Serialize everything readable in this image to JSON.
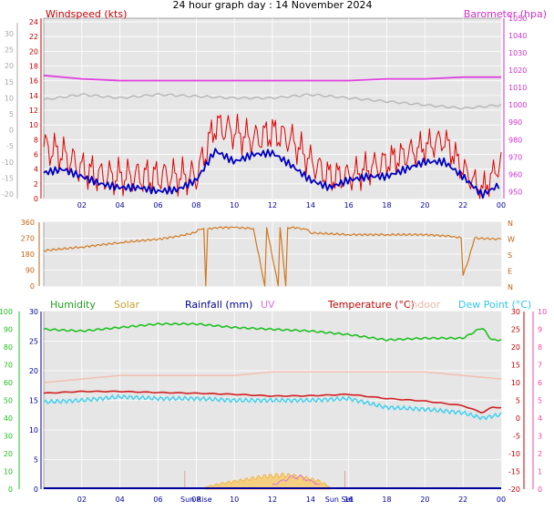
{
  "title": "24 hour graph day : 14 November 2024",
  "colors": {
    "windspeed": "#e00000",
    "windavg": "#0000c0",
    "barometer": "#e040e0",
    "gray": "#b8b8b8",
    "direction": "#d07820",
    "humidity": "#20c020",
    "solar": "#f0b030",
    "rainfall": "#0000a0",
    "uv": "#e070e0",
    "temperature": "#d02020",
    "indoor": "#f0c0b0",
    "dewpoint": "#40d0f0",
    "outer_axis": "#a8a8a8",
    "temp_axis": "#ff40a0"
  },
  "x_ticks": [
    "02",
    "04",
    "06",
    "08",
    "10",
    "12",
    "14",
    "16",
    "18",
    "20",
    "22",
    "00"
  ],
  "bottom_extra_ticks": [
    "Sun Rise",
    "Sun Set"
  ],
  "chart_data": [
    {
      "type": "line",
      "name": "wind-barometer",
      "legend": [
        "Windspeed (kts)",
        "Barometer (hpa)"
      ],
      "x_ticks": [
        "02",
        "04",
        "06",
        "08",
        "10",
        "12",
        "14",
        "16",
        "18",
        "20",
        "22",
        "00"
      ],
      "y_left_ticks": [
        "0",
        "2",
        "4",
        "6",
        "8",
        "10",
        "12",
        "14",
        "16",
        "18",
        "20",
        "22",
        "24"
      ],
      "y_right_ticks": [
        "950",
        "960",
        "970",
        "980",
        "990",
        "1000",
        "1010",
        "1020",
        "1030",
        "1040",
        "1050"
      ],
      "y_outer_ticks": [
        "-20",
        "-15",
        "-10",
        "-5",
        "0",
        "5",
        "10",
        "15",
        "20",
        "25",
        "30"
      ],
      "ylim_left": [
        0,
        24.5
      ],
      "ylim_right": [
        946,
        1050
      ],
      "series": [
        {
          "name": "Windspeed (kts)",
          "x": [
            0,
            1,
            2,
            3,
            4,
            5,
            6,
            7,
            8,
            9,
            10,
            11,
            12,
            13,
            14,
            15,
            16,
            17,
            18,
            19,
            20,
            21,
            22,
            23,
            24
          ],
          "values": [
            7,
            6,
            4,
            3,
            3,
            3,
            3,
            3,
            3,
            10,
            9,
            8,
            9,
            8,
            5,
            3,
            3,
            4,
            5,
            6,
            7,
            8,
            4,
            1,
            5
          ]
        },
        {
          "name": "wind avg",
          "x": [
            0,
            1,
            2,
            3,
            4,
            5,
            6,
            7,
            8,
            9,
            10,
            11,
            12,
            13,
            14,
            15,
            16,
            17,
            18,
            19,
            20,
            21,
            22,
            23,
            24
          ],
          "values": [
            3.5,
            4,
            3,
            2,
            1.5,
            1.5,
            1,
            1.2,
            2.5,
            6.5,
            5,
            6,
            6.2,
            4.5,
            2.5,
            1.5,
            2.5,
            3,
            3,
            4,
            5,
            5,
            3,
            0.5,
            2
          ]
        },
        {
          "name": "Barometer (hpa)",
          "x": [
            0,
            2,
            4,
            6,
            8,
            10,
            12,
            14,
            16,
            18,
            20,
            22,
            24
          ],
          "values": [
            1017,
            1015,
            1014,
            1014,
            1014,
            1014,
            1014,
            1014,
            1014,
            1015,
            1015,
            1016,
            1016
          ]
        },
        {
          "name": "gray trace",
          "x": [
            0,
            2,
            4,
            6,
            8,
            10,
            12,
            14,
            16,
            18,
            20,
            22,
            24
          ],
          "values": [
            1003,
            1006,
            1004,
            1006,
            1005,
            1004,
            1004,
            1006,
            1004,
            1002,
            1000,
            998,
            1000
          ]
        }
      ]
    },
    {
      "type": "line",
      "name": "wind-direction",
      "y_left_ticks": [
        "0",
        "90",
        "180",
        "270",
        "360"
      ],
      "y_right_ticks": [
        "N",
        "E",
        "S",
        "W",
        "N"
      ],
      "ylim": [
        0,
        360
      ],
      "series": [
        {
          "name": "direction",
          "x": [
            0,
            2,
            4,
            6,
            7,
            7.9,
            8.2,
            8.4,
            8.5,
            8.6,
            9,
            10,
            11,
            11.6,
            11.7,
            12.3,
            12.4,
            12.7,
            12.8,
            13,
            13.3,
            13.5,
            13.8,
            14,
            16,
            18,
            20,
            21.5,
            21.9,
            22,
            22.3,
            22.6,
            24
          ],
          "values": [
            200,
            220,
            245,
            265,
            280,
            300,
            320,
            325,
            0,
            320,
            330,
            330,
            325,
            0,
            330,
            0,
            330,
            0,
            330,
            330,
            330,
            320,
            320,
            300,
            290,
            290,
            290,
            280,
            270,
            60,
            150,
            270,
            265
          ]
        }
      ]
    },
    {
      "type": "line",
      "name": "humidity-temperature",
      "legend": [
        "Humidity",
        "Solar",
        "Rainfall (mm)",
        "UV",
        "Temperature (°C)",
        "Indoor",
        "Dew Point (°C)"
      ],
      "y_hum_ticks": [
        "0",
        "10",
        "20",
        "30",
        "40",
        "50",
        "60",
        "70",
        "80",
        "90",
        "100"
      ],
      "y_rain_ticks": [
        "0",
        "5",
        "10",
        "15",
        "20",
        "25",
        "30"
      ],
      "y_temp_ticks": [
        "-20",
        "-15",
        "-10",
        "-5",
        "0",
        "5",
        "10",
        "15",
        "20",
        "25",
        "30"
      ],
      "y_uv_ticks": [
        "0",
        "1",
        "2",
        "3",
        "4",
        "5",
        "6",
        "7",
        "8",
        "9",
        "10"
      ],
      "series": [
        {
          "name": "Humidity",
          "x": [
            0,
            2,
            4,
            6,
            8,
            10,
            12,
            14,
            16,
            18,
            20,
            22,
            23,
            23.5,
            24
          ],
          "values": [
            90,
            89,
            91,
            93,
            93,
            91,
            90,
            89,
            87,
            84,
            85,
            85,
            91,
            84,
            84
          ]
        },
        {
          "name": "Indoor",
          "x": [
            0,
            2,
            4,
            6,
            8,
            10,
            12,
            14,
            16,
            18,
            20,
            22,
            24
          ],
          "values": [
            10,
            11,
            12,
            12,
            12,
            12,
            13,
            13,
            13,
            13,
            13,
            12,
            11
          ]
        },
        {
          "name": "Temperature (°C)",
          "x": [
            0,
            2,
            4,
            6,
            8,
            10,
            12,
            14,
            16,
            18,
            20,
            22,
            23,
            23.5,
            24
          ],
          "values": [
            7,
            7.5,
            7.5,
            7.2,
            7,
            6.7,
            6.2,
            6.3,
            6.7,
            5.5,
            4.8,
            3.5,
            1.5,
            3,
            3
          ]
        },
        {
          "name": "Dew Point (°C)",
          "x": [
            0,
            2,
            4,
            6,
            8,
            10,
            12,
            14,
            16,
            18,
            20,
            22,
            23,
            24
          ],
          "values": [
            4.5,
            5,
            6,
            5.5,
            5.5,
            5,
            5,
            5,
            5.5,
            3,
            2.5,
            1.5,
            0,
            1
          ]
        },
        {
          "name": "Solar",
          "x": [
            8.5,
            9.5,
            10.5,
            11.5,
            12.5,
            13.5,
            14.5,
            15
          ],
          "values": [
            3,
            8,
            12,
            16,
            18,
            16,
            10,
            3
          ]
        },
        {
          "name": "UV",
          "x": [
            12,
            12.5,
            13,
            13.5,
            14,
            14.5
          ],
          "values": [
            1,
            2,
            3,
            3,
            2,
            1
          ]
        },
        {
          "name": "Rainfall (mm)",
          "x": [
            0,
            24
          ],
          "values": [
            0,
            0
          ]
        }
      ]
    }
  ]
}
